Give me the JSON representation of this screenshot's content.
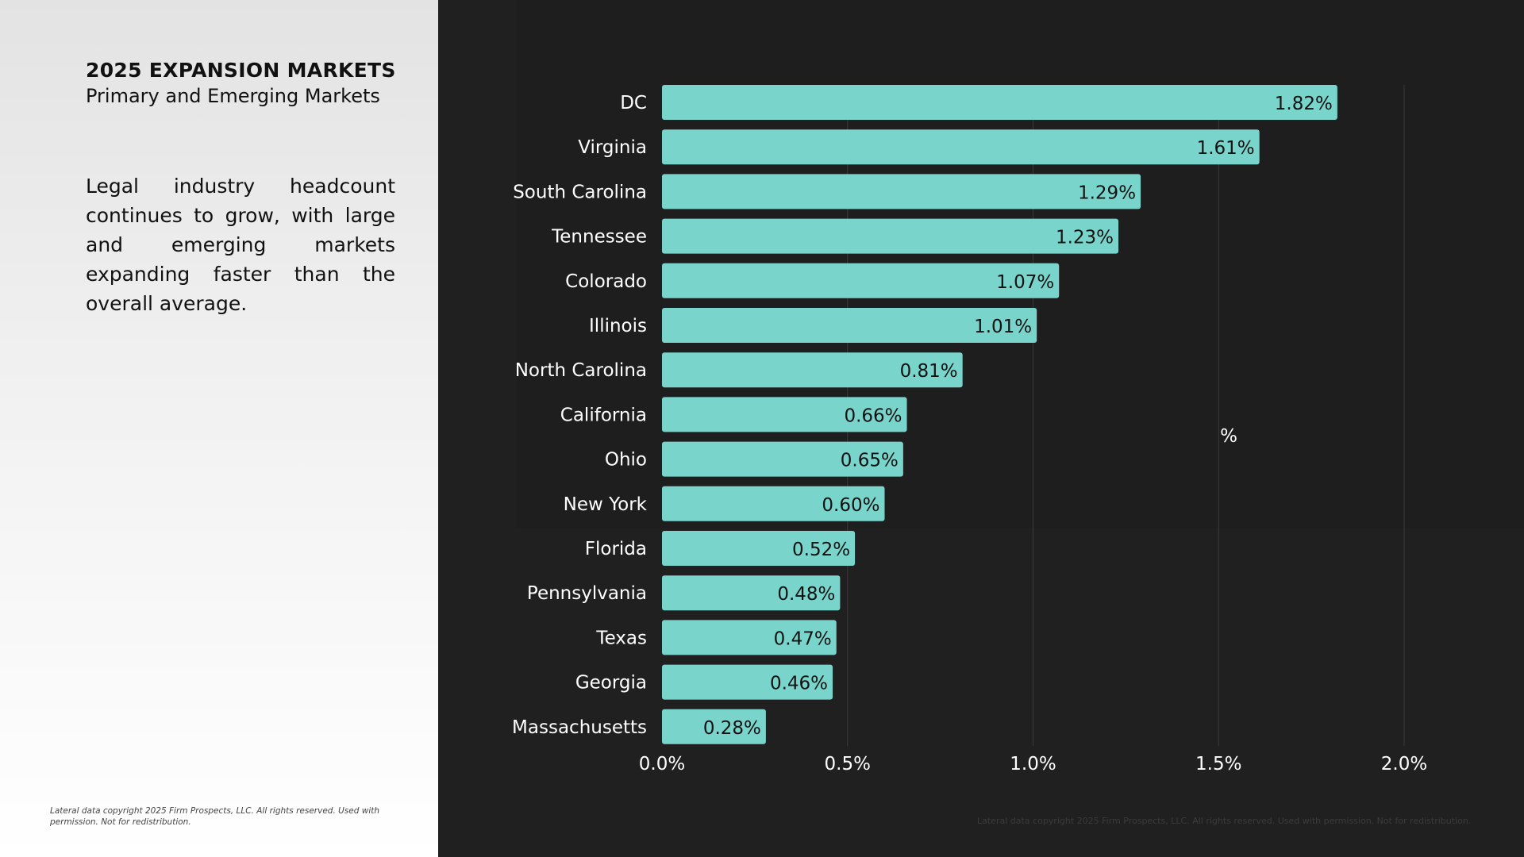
{
  "panel": {
    "title": "2025 EXPANSION MARKETS",
    "subtitle": "Primary and Emerging Markets",
    "description": "Legal industry headcount continues to grow, with large and emerging markets expanding faster than the overall average.",
    "copyright": "Lateral data copyright 2025 Firm Prospects, LLC. All rights reserved. Used with permission. Not for redistribution."
  },
  "footer": {
    "copyright": "Lateral data copyright 2025 Firm Prospects, LLC. All rights reserved. Used with permission. Not for redistribution."
  },
  "colors": {
    "bar": "#79d5cb",
    "background": "#202020",
    "grid": "#3a3a3a"
  },
  "chart_data": {
    "type": "bar",
    "orientation": "horizontal",
    "title": "",
    "xlabel": "",
    "ylabel": "",
    "unit_label": "%",
    "categories": [
      "DC",
      "Virginia",
      "South Carolina",
      "Tennessee",
      "Colorado",
      "Illinois",
      "North Carolina",
      "California",
      "Ohio",
      "New York",
      "Florida",
      "Pennsylvania",
      "Texas",
      "Georgia",
      "Massachusetts"
    ],
    "values": [
      1.82,
      1.61,
      1.29,
      1.23,
      1.07,
      1.01,
      0.81,
      0.66,
      0.65,
      0.6,
      0.52,
      0.48,
      0.47,
      0.46,
      0.28
    ],
    "value_labels": [
      "1.82%",
      "1.61%",
      "1.29%",
      "1.23%",
      "1.07%",
      "1.01%",
      "0.81%",
      "0.66%",
      "0.65%",
      "0.60%",
      "0.52%",
      "0.48%",
      "0.47%",
      "0.46%",
      "0.28%"
    ],
    "xlim": [
      0,
      2.0
    ],
    "ticks": [
      0,
      0.5,
      1.0,
      1.5,
      2.0
    ],
    "tick_labels": [
      "0.0%",
      "0.5%",
      "1.0%",
      "1.5%",
      "2.0%"
    ],
    "grid": true
  }
}
